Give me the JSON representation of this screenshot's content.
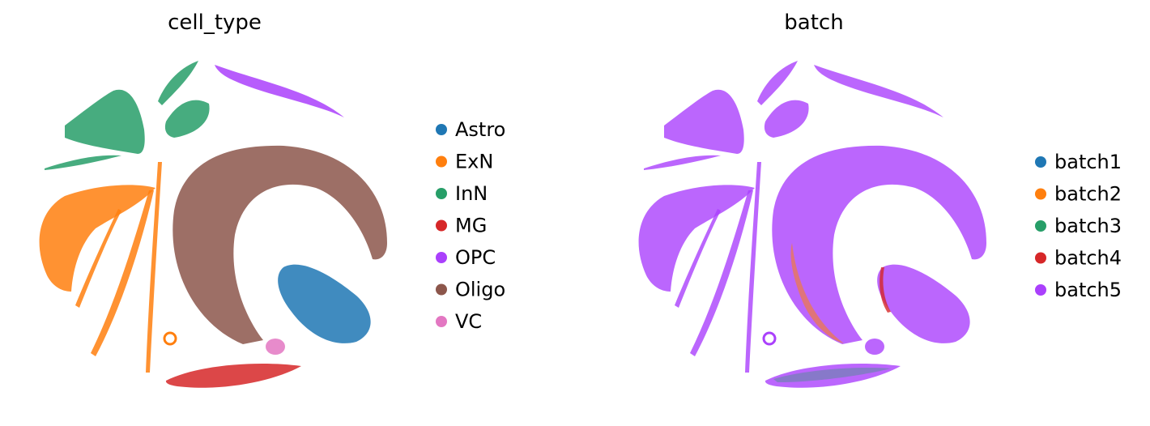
{
  "chart_data": [
    {
      "type": "scatter",
      "title": "cell_type",
      "xlabel": "",
      "ylabel": "",
      "axes_visible": false,
      "grid": false,
      "legend_position": "right",
      "categories": [
        {
          "name": "Astro",
          "color": "#1f77b4"
        },
        {
          "name": "ExN",
          "color": "#ff7f0e"
        },
        {
          "name": "InN",
          "color": "#279e68"
        },
        {
          "name": "MG",
          "color": "#d62728"
        },
        {
          "name": "OPC",
          "color": "#aa40fc"
        },
        {
          "name": "Oligo",
          "color": "#8c564b"
        },
        {
          "name": "VC",
          "color": "#e377c2"
        }
      ]
    },
    {
      "type": "scatter",
      "title": "batch",
      "xlabel": "",
      "ylabel": "",
      "axes_visible": false,
      "grid": false,
      "legend_position": "right",
      "categories": [
        {
          "name": "batch1",
          "color": "#1f77b4"
        },
        {
          "name": "batch2",
          "color": "#ff7f0e"
        },
        {
          "name": "batch3",
          "color": "#279e68"
        },
        {
          "name": "batch4",
          "color": "#d62728"
        },
        {
          "name": "batch5",
          "color": "#aa40fc"
        }
      ]
    }
  ]
}
